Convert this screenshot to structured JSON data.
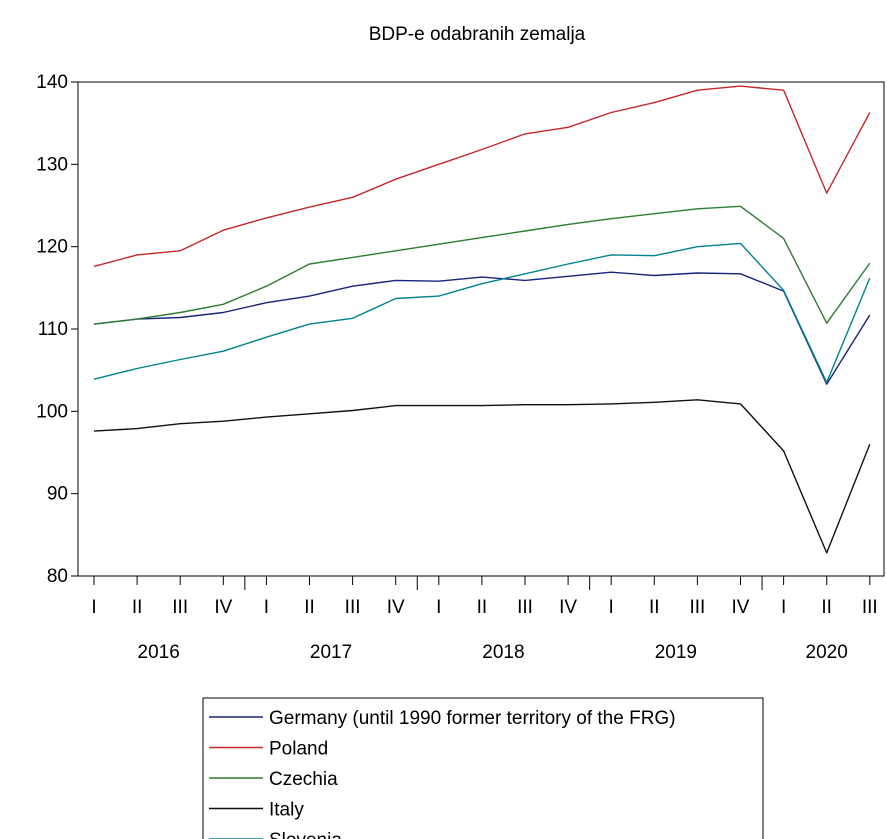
{
  "chart_data": {
    "type": "line",
    "title": "BDP-e odabranih zemalja",
    "xlabel": "",
    "ylabel": "",
    "ylim": [
      80,
      140
    ],
    "yticks": [
      80,
      90,
      100,
      110,
      120,
      130,
      140
    ],
    "grid": false,
    "legend_position": "bottom",
    "categories": [
      "I",
      "II",
      "III",
      "IV",
      "I",
      "II",
      "III",
      "IV",
      "I",
      "II",
      "III",
      "IV",
      "I",
      "II",
      "III",
      "IV",
      "I",
      "II",
      "III"
    ],
    "years": [
      {
        "label": "2016",
        "start": 0,
        "end": 3
      },
      {
        "label": "2017",
        "start": 4,
        "end": 7
      },
      {
        "label": "2018",
        "start": 8,
        "end": 11
      },
      {
        "label": "2019",
        "start": 12,
        "end": 15
      },
      {
        "label": "2020",
        "start": 16,
        "end": 18
      }
    ],
    "series": [
      {
        "name": "Germany (until 1990 former territory of the FRG)",
        "color": "#1a237e",
        "values": [
          110.6,
          111.2,
          111.4,
          112.0,
          113.2,
          114.0,
          115.2,
          115.9,
          115.8,
          116.3,
          115.9,
          116.4,
          116.9,
          116.5,
          116.8,
          116.7,
          114.6,
          103.3,
          111.7
        ]
      },
      {
        "name": "Poland",
        "color": "#c62828",
        "values": [
          117.6,
          119.0,
          119.5,
          122.0,
          123.5,
          124.8,
          126.0,
          128.2,
          130.0,
          131.8,
          133.7,
          134.5,
          136.3,
          137.5,
          139.0,
          139.5,
          139.0,
          126.5,
          136.3
        ]
      },
      {
        "name": "Czechia",
        "color": "#2e7d32",
        "values": [
          110.6,
          111.2,
          112.0,
          113.0,
          115.2,
          117.9,
          118.7,
          119.5,
          120.3,
          121.1,
          121.9,
          122.7,
          123.4,
          124.0,
          124.6,
          124.9,
          121.0,
          110.7,
          118.0
        ]
      },
      {
        "name": "Italy",
        "color": "#111111",
        "values": [
          97.6,
          97.9,
          98.5,
          98.8,
          99.3,
          99.7,
          100.1,
          100.7,
          100.7,
          100.7,
          100.8,
          100.8,
          100.9,
          101.1,
          101.4,
          100.9,
          95.2,
          82.8,
          96.0
        ]
      },
      {
        "name": "Slovenia",
        "color": "#00838f",
        "values": [
          103.9,
          105.2,
          106.3,
          107.3,
          109.0,
          110.6,
          111.3,
          113.7,
          114.0,
          115.5,
          116.7,
          117.9,
          119.0,
          118.9,
          120.0,
          120.4,
          114.7,
          103.5,
          116.2
        ]
      }
    ]
  }
}
